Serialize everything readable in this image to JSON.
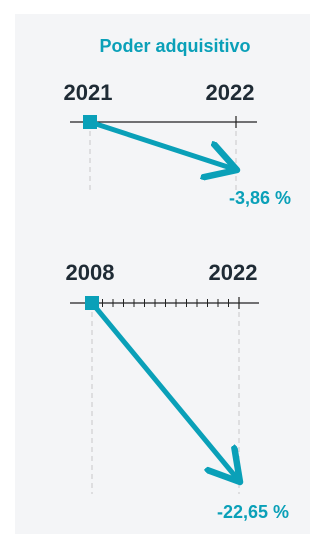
{
  "title": "Poder adquisitivo",
  "colors": {
    "accent": "#0aa0b8",
    "axis": "#222222",
    "text": "#1f2b35",
    "guide": "#c8c8c8",
    "background": "#f4f5f7"
  },
  "chart_data": [
    {
      "type": "line",
      "x": [
        "2021",
        "2022"
      ],
      "values": [
        0,
        -3.86
      ],
      "start_label": "2021",
      "end_label": "2022",
      "value_label": "-3,86 %",
      "ticks_between": 0
    },
    {
      "type": "line",
      "x": [
        "2008",
        "2022"
      ],
      "values": [
        0,
        -22.65
      ],
      "start_label": "2008",
      "end_label": "2022",
      "value_label": "-22,65 %",
      "ticks_between": 13
    }
  ]
}
